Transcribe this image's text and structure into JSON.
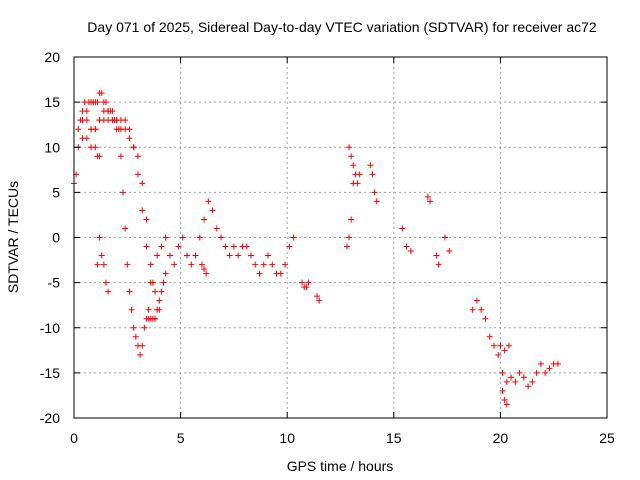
{
  "chart_data": {
    "type": "scatter",
    "title": "Day 071 of 2025, Sidereal Day-to-day VTEC variation (SDTVAR) for receiver ac72",
    "xlabel": "GPS time / hours",
    "ylabel": "SDTVAR / TECUs",
    "xlim": [
      0,
      25
    ],
    "ylim": [
      -20,
      20
    ],
    "x_ticks": [
      0,
      5,
      10,
      15,
      20,
      25
    ],
    "y_ticks": [
      -20,
      -15,
      -10,
      -5,
      0,
      5,
      10,
      15,
      20
    ],
    "grid": true,
    "marker": "+",
    "color": "#ff0000",
    "series": [
      {
        "name": "SDTVAR",
        "segments": [
          {
            "x": [
              0.0,
              0.1,
              0.2,
              0.3,
              0.4,
              0.5,
              0.6,
              0.7,
              0.8,
              0.9,
              1.0,
              1.1,
              1.2,
              1.3,
              1.4,
              1.5,
              1.6,
              1.7,
              1.8,
              1.9,
              2.0,
              2.1,
              2.2,
              2.3,
              2.4,
              2.5,
              2.6,
              2.7,
              2.8,
              2.9,
              3.0,
              3.1,
              3.2,
              3.3,
              3.4,
              3.5,
              3.6,
              3.7,
              3.8,
              3.9,
              4.0,
              4.1,
              4.2,
              4.3
            ],
            "y": [
              6,
              7,
              10,
              13,
              14,
              15,
              14,
              15,
              15,
              15,
              15,
              15,
              16,
              16,
              15,
              15,
              14,
              14,
              13,
              13,
              12,
              12,
              9,
              5,
              1,
              -3,
              -6,
              -8,
              -10,
              -11,
              -12,
              -13,
              -12,
              -10,
              -9,
              -9,
              -9,
              -9,
              -9,
              -8,
              -7,
              -6,
              -5,
              -4
            ]
          },
          {
            "x": [
              0.2,
              0.4,
              0.6,
              0.8,
              1.0,
              1.2,
              1.4,
              1.6,
              1.8,
              2.0,
              2.2,
              2.4,
              2.6,
              2.8,
              3.0,
              3.2,
              3.4,
              3.6,
              3.8
            ],
            "y": [
              12,
              13,
              13,
              12,
              12,
              13,
              14,
              14,
              14,
              13,
              13,
              13,
              12,
              10,
              7,
              3,
              -1,
              -5,
              -9
            ]
          },
          {
            "x": [
              0.4,
              0.6,
              0.8,
              1.0,
              1.2,
              1.4,
              1.6,
              1.8,
              2.0,
              2.2,
              2.4,
              2.6,
              2.8,
              3.0,
              3.2,
              3.4,
              3.6,
              3.8,
              4.0
            ],
            "y": [
              11,
              11,
              12,
              12,
              13,
              13,
              13,
              13,
              13,
              12,
              12,
              11,
              10,
              9,
              6,
              2,
              -3,
              -6,
              -8
            ]
          },
          {
            "x": [
              0.8,
              1.0,
              1.1,
              1.2
            ],
            "y": [
              10,
              10,
              9,
              9
            ]
          },
          {
            "x": [
              1.1,
              1.2,
              1.3,
              1.4,
              1.5,
              1.6
            ],
            "y": [
              -3,
              0,
              -2,
              -3,
              -5,
              -6
            ]
          },
          {
            "x": [
              3.5,
              3.7,
              3.9,
              4.1,
              4.3,
              4.5,
              4.7,
              4.9,
              5.1,
              5.3,
              5.5,
              5.7,
              5.9,
              6.1,
              6.3,
              6.5,
              6.7,
              6.9,
              7.1,
              7.3,
              7.5,
              7.7,
              7.9,
              8.1,
              8.3,
              8.5,
              8.7,
              8.9,
              9.1,
              9.3,
              9.5,
              9.7,
              9.9,
              10.1,
              10.3
            ],
            "y": [
              -8,
              -5,
              -2,
              -1,
              0,
              -2,
              -3,
              -1,
              0,
              -2,
              -3,
              -2,
              0,
              2,
              4,
              3,
              1,
              0,
              -1,
              -2,
              -1,
              -2,
              -1,
              -1,
              -2,
              -3,
              -4,
              -3,
              -2,
              -3,
              -4,
              -4,
              -3,
              -1,
              0
            ]
          },
          {
            "x": [
              6.0,
              6.1,
              6.2
            ],
            "y": [
              -3,
              -3.5,
              -4
            ]
          },
          {
            "x": [
              10.7,
              10.8,
              10.9,
              11.0
            ],
            "y": [
              -5,
              -5.5,
              -5.5,
              -5
            ]
          },
          {
            "x": [
              11.4,
              11.5
            ],
            "y": [
              -6.5,
              -7
            ]
          },
          {
            "x": [
              12.8,
              12.9,
              13.0,
              13.1,
              13.2,
              13.3,
              13.4
            ],
            "y": [
              -1,
              0,
              2,
              6,
              7,
              6,
              7
            ]
          },
          {
            "x": [
              12.9,
              13.0,
              13.1
            ],
            "y": [
              10,
              9,
              8
            ]
          },
          {
            "x": [
              13.9,
              14.0,
              14.1,
              14.2
            ],
            "y": [
              8,
              7,
              5,
              4
            ]
          },
          {
            "x": [
              15.4,
              15.6,
              15.8
            ],
            "y": [
              1,
              -1,
              -1.5
            ]
          },
          {
            "x": [
              16.6,
              16.7
            ],
            "y": [
              4.5,
              4
            ]
          },
          {
            "x": [
              17.0,
              17.1,
              17.4,
              17.6
            ],
            "y": [
              -2,
              -3,
              0,
              -1.5
            ]
          },
          {
            "x": [
              18.7,
              18.9,
              19.1,
              19.3,
              19.5,
              19.7,
              19.9,
              20.1,
              20.3,
              20.5,
              20.7,
              20.9,
              21.1,
              21.3,
              21.5,
              21.7,
              21.9,
              22.1,
              22.3,
              22.5,
              22.7
            ],
            "y": [
              -8,
              -7,
              -8,
              -9,
              -11,
              -12,
              -13,
              -15,
              -16,
              -15.5,
              -16,
              -15,
              -15.5,
              -16.5,
              -16,
              -15,
              -14,
              -15,
              -14.5,
              -14,
              -14
            ]
          },
          {
            "x": [
              20.1,
              20.2,
              20.3
            ],
            "y": [
              -17,
              -18,
              -18.5
            ]
          },
          {
            "x": [
              20.0,
              20.2,
              20.4
            ],
            "y": [
              -12,
              -12.5,
              -12
            ]
          }
        ]
      }
    ]
  }
}
